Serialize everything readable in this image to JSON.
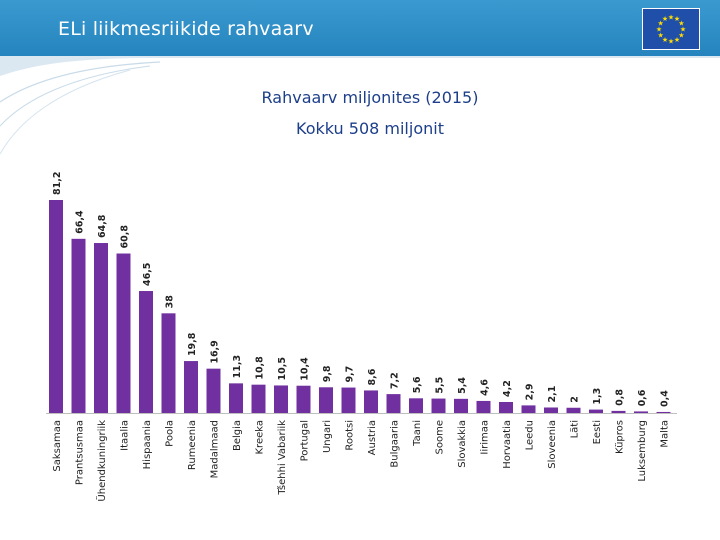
{
  "slide": {
    "title": "ELi liikmesriikide rahvaarv"
  },
  "icons": {
    "flag": "eu-flag-icon"
  },
  "colors": {
    "header": "#2b8ac6",
    "bar": "#7030a0",
    "title_text": "#1d3f8a"
  },
  "chart_data": {
    "type": "bar",
    "title": "Rahvaarv miljonites (2015)",
    "subtitle": "Kokku 508 miljonit",
    "xlabel": "",
    "ylabel": "",
    "categories": [
      "Saksamaa",
      "Prantsusmaa",
      "Ühendkuningriik",
      "Itaalia",
      "Hispaania",
      "Poola",
      "Rumeenia",
      "Madalmaad",
      "Belgia",
      "Kreeka",
      "Tšehhi Vabariik",
      "Portugal",
      "Ungari",
      "Rootsi",
      "Austria",
      "Bulgaaria",
      "Taani",
      "Soome",
      "Slovakkia",
      "Iirimaa",
      "Horvaatia",
      "Leedu",
      "Sloveenia",
      "Läti",
      "Eesti",
      "Küpros",
      "Luksemburg",
      "Malta"
    ],
    "values": [
      81.2,
      66.4,
      64.8,
      60.8,
      46.5,
      38,
      19.8,
      16.9,
      11.3,
      10.8,
      10.5,
      10.4,
      9.8,
      9.7,
      8.6,
      7.2,
      5.6,
      5.5,
      5.4,
      4.6,
      4.2,
      2.9,
      2.1,
      2,
      1.3,
      0.8,
      0.6,
      0.4
    ],
    "data_labels": [
      "81,2",
      "66,4",
      "64,8",
      "60,8",
      "46,5",
      "38",
      "19,8",
      "16,9",
      "11,3",
      "10,8",
      "10,5",
      "10,4",
      "9,8",
      "9,7",
      "8,6",
      "7,2",
      "5,6",
      "5,5",
      "5,4",
      "4,6",
      "4,2",
      "2,9",
      "2,1",
      "2",
      "1,3",
      "0,8",
      "0,6",
      "0,4"
    ],
    "ylim": [
      0,
      81.2
    ],
    "grid": false,
    "legend": "none"
  }
}
